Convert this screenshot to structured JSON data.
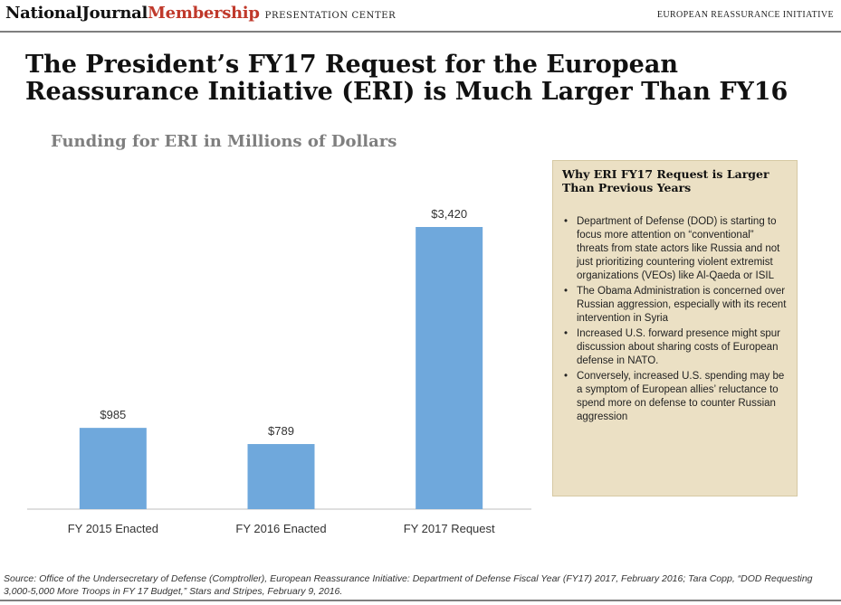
{
  "header": {
    "logo_primary": "NationalJournal",
    "logo_secondary": "Membership",
    "section": "PRESENTATION CENTER",
    "topic": "EUROPEAN REASSURANCE INITIATIVE"
  },
  "slide": {
    "title": "The President’s FY17 Request for the European Reassurance Initiative (ERI) is Much Larger Than FY16"
  },
  "chart_data": {
    "type": "bar",
    "title": "Funding for ERI in Millions of Dollars",
    "categories": [
      "FY 2015 Enacted",
      "FY 2016 Enacted",
      "FY 2017 Request"
    ],
    "values": [
      985,
      789,
      3420
    ],
    "value_labels": [
      "$985",
      "$789",
      "$3,420"
    ],
    "xlabel": "",
    "ylabel": "",
    "ylim": [
      0,
      3600
    ],
    "grid": false,
    "bar_color": "#6fa8dc"
  },
  "sidebox": {
    "title": "Why ERI FY17 Request is Larger Than Previous Years",
    "bullets": [
      "Department of Defense (DOD) is starting to focus more attention on “conventional” threats from state actors like Russia and not just prioritizing countering violent extremist organizations (VEOs) like Al-Qaeda or ISIL",
      "The Obama Administration is concerned over Russian aggression, especially with its recent intervention in Syria",
      "Increased U.S. forward presence might spur discussion about sharing costs of European defense in NATO.",
      "Conversely, increased U.S. spending may be a symptom of European allies’ reluctance to spend more on defense to counter Russian aggression"
    ],
    "background": "#ebe0c4"
  },
  "footer": {
    "source": "Source: Office of the Undersecretary of Defense (Comptroller), European Reassurance Initiative: Department of Defense Fiscal Year (FY17) 2017, February 2016; Tara Copp, “DOD Requesting 3,000-5,000 More Troops in FY 17 Budget,” Stars and Stripes, February 9, 2016."
  }
}
